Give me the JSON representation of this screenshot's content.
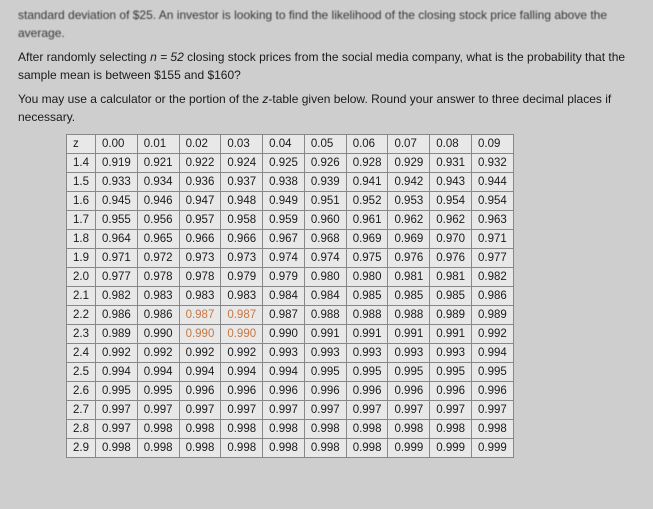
{
  "problem": {
    "line1": "standard deviation of $25. An investor is looking to find the likelihood of the closing stock price falling above the average.",
    "line2_part1": "After randomly selecting ",
    "line2_var": "n = 52",
    "line2_part2": " closing stock prices from the social media company, what is the probability that the sample mean is between $155 and $160?",
    "line3_part1": "You may use a calculator or the portion of the ",
    "line3_var": "z",
    "line3_part2": "-table given below. Round your answer to three decimal places if necessary."
  },
  "ztable": {
    "header": [
      "z",
      "0.00",
      "0.01",
      "0.02",
      "0.03",
      "0.04",
      "0.05",
      "0.06",
      "0.07",
      "0.08",
      "0.09"
    ],
    "rows": [
      [
        "1.4",
        "0.919",
        "0.921",
        "0.922",
        "0.924",
        "0.925",
        "0.926",
        "0.928",
        "0.929",
        "0.931",
        "0.932"
      ],
      [
        "1.5",
        "0.933",
        "0.934",
        "0.936",
        "0.937",
        "0.938",
        "0.939",
        "0.941",
        "0.942",
        "0.943",
        "0.944"
      ],
      [
        "1.6",
        "0.945",
        "0.946",
        "0.947",
        "0.948",
        "0.949",
        "0.951",
        "0.952",
        "0.953",
        "0.954",
        "0.954"
      ],
      [
        "1.7",
        "0.955",
        "0.956",
        "0.957",
        "0.958",
        "0.959",
        "0.960",
        "0.961",
        "0.962",
        "0.962",
        "0.963"
      ],
      [
        "1.8",
        "0.964",
        "0.965",
        "0.966",
        "0.966",
        "0.967",
        "0.968",
        "0.969",
        "0.969",
        "0.970",
        "0.971"
      ],
      [
        "1.9",
        "0.971",
        "0.972",
        "0.973",
        "0.973",
        "0.974",
        "0.974",
        "0.975",
        "0.976",
        "0.976",
        "0.977"
      ],
      [
        "2.0",
        "0.977",
        "0.978",
        "0.978",
        "0.979",
        "0.979",
        "0.980",
        "0.980",
        "0.981",
        "0.981",
        "0.982"
      ],
      [
        "2.1",
        "0.982",
        "0.983",
        "0.983",
        "0.983",
        "0.984",
        "0.984",
        "0.985",
        "0.985",
        "0.985",
        "0.986"
      ],
      [
        "2.2",
        "0.986",
        "0.986",
        "0.987",
        "0.987",
        "0.987",
        "0.988",
        "0.988",
        "0.988",
        "0.989",
        "0.989"
      ],
      [
        "2.3",
        "0.989",
        "0.990",
        "0.990",
        "0.990",
        "0.990",
        "0.991",
        "0.991",
        "0.991",
        "0.991",
        "0.992"
      ],
      [
        "2.4",
        "0.992",
        "0.992",
        "0.992",
        "0.992",
        "0.993",
        "0.993",
        "0.993",
        "0.993",
        "0.993",
        "0.994"
      ],
      [
        "2.5",
        "0.994",
        "0.994",
        "0.994",
        "0.994",
        "0.994",
        "0.995",
        "0.995",
        "0.995",
        "0.995",
        "0.995"
      ],
      [
        "2.6",
        "0.995",
        "0.995",
        "0.996",
        "0.996",
        "0.996",
        "0.996",
        "0.996",
        "0.996",
        "0.996",
        "0.996"
      ],
      [
        "2.7",
        "0.997",
        "0.997",
        "0.997",
        "0.997",
        "0.997",
        "0.997",
        "0.997",
        "0.997",
        "0.997",
        "0.997"
      ],
      [
        "2.8",
        "0.997",
        "0.998",
        "0.998",
        "0.998",
        "0.998",
        "0.998",
        "0.998",
        "0.998",
        "0.998",
        "0.998"
      ],
      [
        "2.9",
        "0.998",
        "0.998",
        "0.998",
        "0.998",
        "0.998",
        "0.998",
        "0.998",
        "0.999",
        "0.999",
        "0.999"
      ]
    ],
    "highlight": [
      {
        "row": 8,
        "col": 3
      },
      {
        "row": 8,
        "col": 4
      },
      {
        "row": 9,
        "col": 3
      },
      {
        "row": 9,
        "col": 4
      }
    ]
  }
}
